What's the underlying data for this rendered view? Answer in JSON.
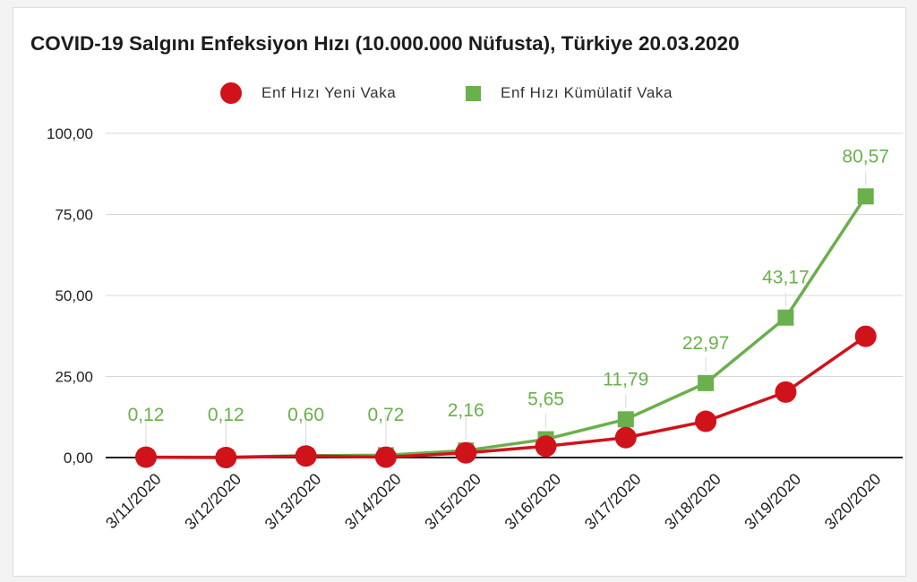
{
  "chart_data": {
    "type": "line",
    "title": "COVID-19 Salgını Enfeksiyon Hızı (10.000.000 Nüfusta), Türkiye 20.03.2020",
    "categories": [
      "3/11/2020",
      "3/12/2020",
      "3/13/2020",
      "3/14/2020",
      "3/15/2020",
      "3/16/2020",
      "3/17/2020",
      "3/18/2020",
      "3/19/2020",
      "3/20/2020"
    ],
    "series": [
      {
        "name": "Enf Hızı Yeni Vaka",
        "color": "#d0121b",
        "marker": "circle",
        "values": [
          0.12,
          0,
          0.48,
          0.12,
          1.44,
          3.49,
          6.14,
          11.18,
          20.2,
          37.4
        ]
      },
      {
        "name": "Enf Hızı Kümülatif Vaka",
        "color": "#6ab04c",
        "marker": "square",
        "values": [
          0.12,
          0.12,
          0.6,
          0.72,
          2.16,
          5.65,
          11.79,
          22.97,
          43.17,
          80.57
        ],
        "data_labels": [
          "0,12",
          "0,12",
          "0,60",
          "0,72",
          "2,16",
          "5,65",
          "11,79",
          "22,97",
          "43,17",
          "80,57"
        ]
      }
    ],
    "yticks": [
      "0,00",
      "25,00",
      "50,00",
      "75,00",
      "100,00"
    ],
    "ytick_values": [
      0,
      25,
      50,
      75,
      100
    ],
    "ylim": [
      0,
      100
    ],
    "grid": true,
    "legend_position": "top-center"
  }
}
